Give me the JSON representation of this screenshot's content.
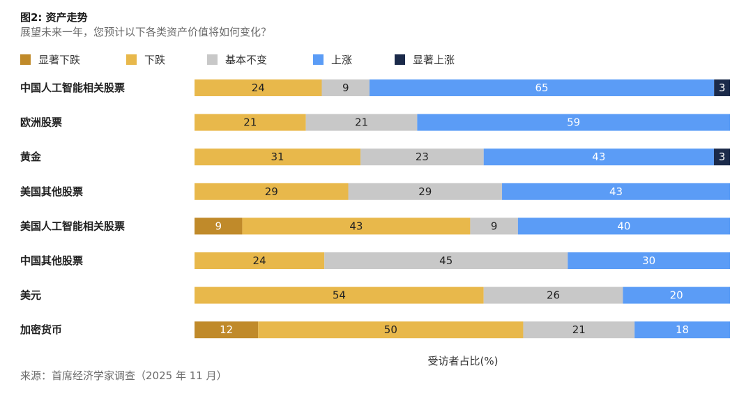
{
  "title": "图2: 资产走势",
  "subtitle": "展望未来一年，您预计以下各类资产价值将如何变化？",
  "source": "来源：首席经济学家调查（2025 年 11 月）",
  "chart_data": {
    "type": "bar",
    "orientation": "horizontal",
    "stacked": true,
    "xlabel": "受访者占比(%)",
    "ylabel": "",
    "xlim": [
      0,
      100
    ],
    "legend_position": "top-left",
    "grid": false,
    "categories": [
      "中国人工智能相关股票",
      "欧洲股票",
      "黄金",
      "美国其他股票",
      "美国人工智能相关股票",
      "中国其他股票",
      "美元",
      "加密货币"
    ],
    "series": [
      {
        "name": "显著下跌",
        "color": "#c08a2a",
        "text_color": "#ffffff",
        "values": [
          0,
          0,
          0,
          0,
          9,
          0,
          0,
          12
        ]
      },
      {
        "name": "下跌",
        "color": "#e8b84b",
        "text_color": "#222222",
        "values": [
          24,
          21,
          31,
          29,
          43,
          24,
          54,
          50
        ]
      },
      {
        "name": "基本不变",
        "color": "#c8c8c8",
        "text_color": "#222222",
        "values": [
          9,
          21,
          23,
          29,
          9,
          45,
          26,
          21
        ]
      },
      {
        "name": "上涨",
        "color": "#5b9cf6",
        "text_color": "#ffffff",
        "values": [
          65,
          59,
          43,
          43,
          40,
          30,
          20,
          18
        ]
      },
      {
        "name": "显著上涨",
        "color": "#1b2a4a",
        "text_color": "#ffffff",
        "values": [
          3,
          0,
          3,
          0,
          0,
          0,
          0,
          0
        ]
      }
    ]
  }
}
